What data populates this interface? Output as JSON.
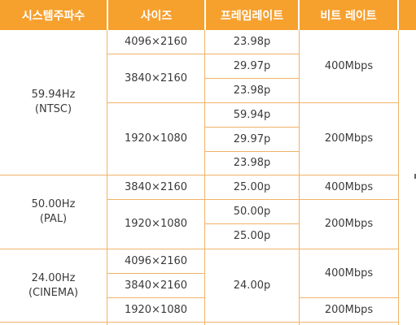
{
  "header": {
    "system_frequency": "시스템주파수",
    "size": "사이즈",
    "frame_rate": "프레임레이트",
    "bit_rate": "비트 레이트"
  },
  "groups": [
    {
      "system": "59.94Hz",
      "system_sub": "(NTSC)",
      "sizes": [
        "4096×2160",
        "3840×2160",
        "1920×1080"
      ],
      "frame_rates": [
        "23.98p",
        "29.97p",
        "23.98p",
        "59.94p",
        "29.97p",
        "23.98p"
      ],
      "bit_rates": [
        "400Mbps",
        "200Mbps"
      ]
    },
    {
      "system": "50.00Hz",
      "system_sub": "(PAL)",
      "sizes": [
        "3840×2160",
        "1920×1080"
      ],
      "frame_rates": [
        "25.00p",
        "50.00p",
        "25.00p"
      ],
      "bit_rates": [
        "400Mbps",
        "200Mbps"
      ]
    },
    {
      "system": "24.00Hz",
      "system_sub": "(CINEMA)",
      "sizes": [
        "4096×2160",
        "3840×2160",
        "1920×1080"
      ],
      "frame_rates": [
        "24.00p"
      ],
      "bit_rates": [
        "400Mbps",
        "200Mbps"
      ]
    }
  ],
  "colors": {
    "header_bg": "#f6a02e",
    "grid_line": "#f0b36a",
    "text": "#3a3a3a"
  }
}
